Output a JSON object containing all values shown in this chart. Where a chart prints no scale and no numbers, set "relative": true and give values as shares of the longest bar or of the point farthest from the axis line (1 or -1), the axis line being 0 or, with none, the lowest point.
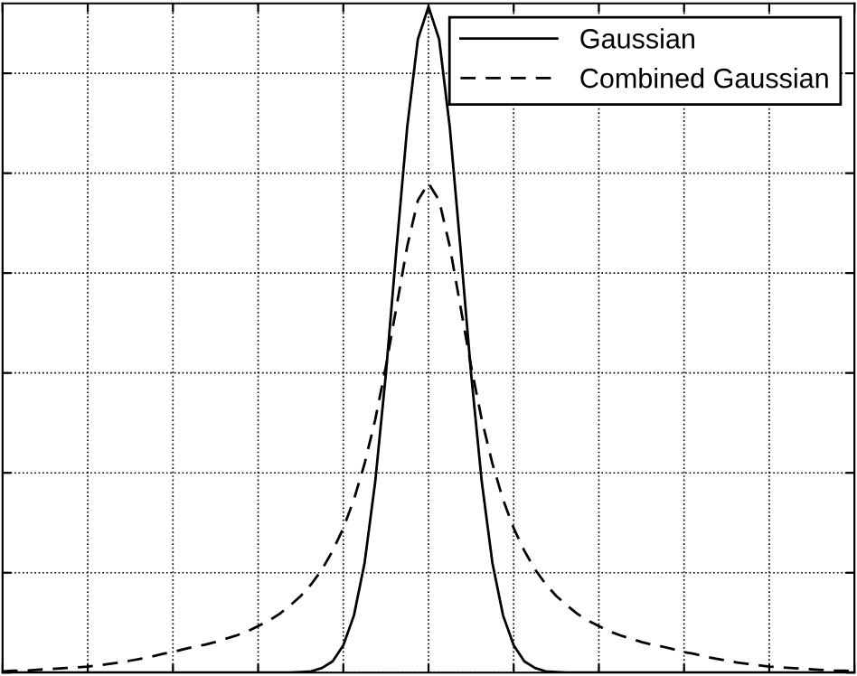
{
  "chart_data": {
    "type": "line",
    "relative": true,
    "categories": [
      null,
      null,
      null,
      null,
      null,
      null,
      null,
      null,
      null,
      null,
      null,
      null,
      null,
      null,
      null,
      null,
      null,
      null,
      null,
      null,
      null,
      null,
      null,
      null,
      null,
      null,
      null,
      null,
      null,
      null,
      null,
      null,
      null,
      null,
      null,
      null,
      null,
      null,
      null,
      null,
      null,
      null,
      null,
      null,
      null,
      null,
      null,
      null,
      null,
      null,
      null,
      null,
      null,
      null,
      null,
      null,
      null,
      null,
      null,
      null,
      null,
      null,
      null,
      null,
      null,
      null,
      null,
      null,
      null,
      null,
      null,
      null,
      null,
      null,
      null,
      null,
      null,
      null,
      null,
      null,
      null
    ],
    "series": [
      {
        "name": "Gaussian",
        "color": "#000000",
        "line_style": "solid",
        "values": [
          0,
          0,
          0,
          0,
          0,
          0,
          0,
          0,
          0,
          0,
          0,
          0,
          0,
          0,
          0,
          0,
          0,
          0,
          0,
          0,
          0,
          0,
          0,
          0,
          0,
          0,
          0,
          0,
          0.001,
          0.002,
          0.007,
          0.017,
          0.041,
          0.086,
          0.165,
          0.287,
          0.449,
          0.638,
          0.819,
          0.951,
          1,
          0.951,
          0.819,
          0.638,
          0.449,
          0.287,
          0.165,
          0.086,
          0.041,
          0.017,
          0.007,
          0.002,
          0.001,
          0,
          0,
          0,
          0,
          0,
          0,
          0,
          0,
          0,
          0,
          0,
          0,
          0,
          0,
          0,
          0,
          0,
          0,
          0,
          0,
          0,
          0,
          0,
          0,
          0,
          0,
          0,
          0
        ]
      },
      {
        "name": "Combined Gaussian",
        "color": "#000000",
        "line_style": "dashed",
        "values": [
          0.002,
          0.003,
          0.003,
          0.004,
          0.005,
          0.006,
          0.007,
          0.008,
          0.009,
          0.011,
          0.013,
          0.015,
          0.018,
          0.021,
          0.024,
          0.028,
          0.031,
          0.035,
          0.039,
          0.042,
          0.046,
          0.051,
          0.056,
          0.062,
          0.07,
          0.078,
          0.088,
          0.101,
          0.115,
          0.133,
          0.155,
          0.183,
          0.217,
          0.26,
          0.314,
          0.38,
          0.46,
          0.55,
          0.64,
          0.709,
          0.735,
          0.709,
          0.64,
          0.55,
          0.46,
          0.38,
          0.314,
          0.26,
          0.217,
          0.183,
          0.155,
          0.133,
          0.115,
          0.101,
          0.088,
          0.078,
          0.07,
          0.062,
          0.056,
          0.051,
          0.046,
          0.042,
          0.039,
          0.035,
          0.031,
          0.028,
          0.024,
          0.021,
          0.018,
          0.015,
          0.013,
          0.011,
          0.009,
          0.008,
          0.007,
          0.006,
          0.005,
          0.004,
          0.003,
          0.003,
          0.002
        ]
      }
    ],
    "grid": true,
    "legend": "top right",
    "marker": "none"
  }
}
